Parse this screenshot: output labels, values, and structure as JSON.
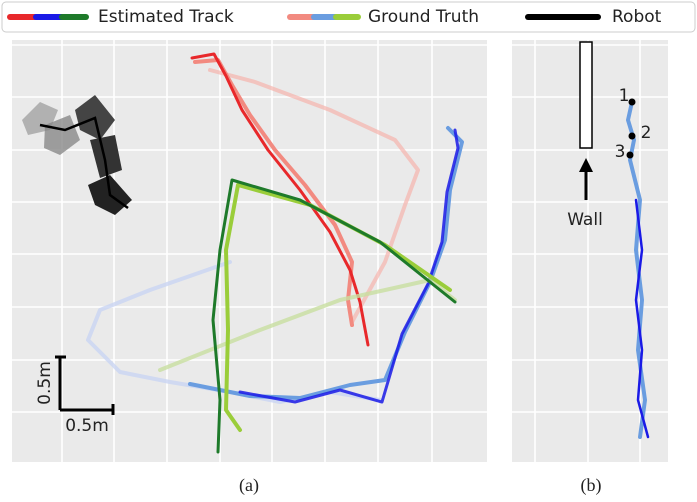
{
  "legend": [
    "Estimated Track",
    "Ground Truth",
    "Robot"
  ],
  "scale": {
    "vertical": "0.5m",
    "horizontal": "0.5m"
  },
  "panel_b": {
    "wall": "Wall",
    "points": [
      "1",
      "2",
      "3"
    ]
  },
  "captions": [
    "(a)",
    "(b)"
  ]
}
